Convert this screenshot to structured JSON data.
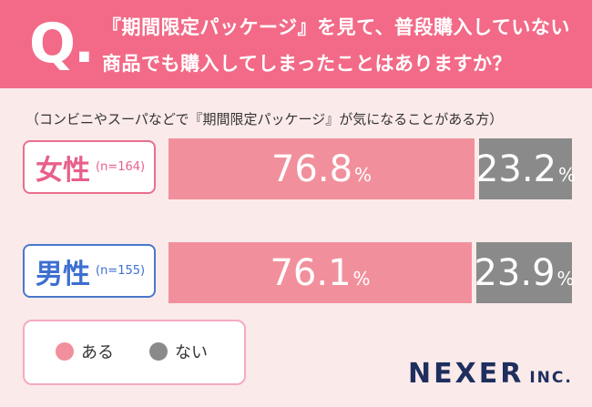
{
  "header": {
    "q_mark": "Q.",
    "question_line1": "『期間限定パッケージ』を見て、普段購入していない",
    "question_line2": "商品でも購入してしまったことはありますか？"
  },
  "note": "（コンビニやスーパなどで『期間限定パッケージ』が気になることがある方）",
  "chart_data": {
    "type": "bar",
    "stacked": true,
    "orientation": "horizontal",
    "categories": [
      "女性",
      "男性"
    ],
    "category_n": [
      "(n=164)",
      "(n=155)"
    ],
    "series": [
      {
        "name": "ある",
        "values": [
          76.8,
          76.1
        ],
        "color": "#f1909c"
      },
      {
        "name": "ない",
        "values": [
          23.2,
          23.9
        ],
        "color": "#8a8a8a"
      }
    ],
    "value_labels": [
      [
        "76.8",
        "23.2"
      ],
      [
        "76.1",
        "23.9"
      ]
    ],
    "unit": "%"
  },
  "legend": {
    "items": [
      {
        "label": "ある",
        "color": "#f1909c"
      },
      {
        "label": "ない",
        "color": "#8a8a8a"
      }
    ]
  },
  "brand": {
    "name": "NEXER",
    "suffix": "INC."
  }
}
